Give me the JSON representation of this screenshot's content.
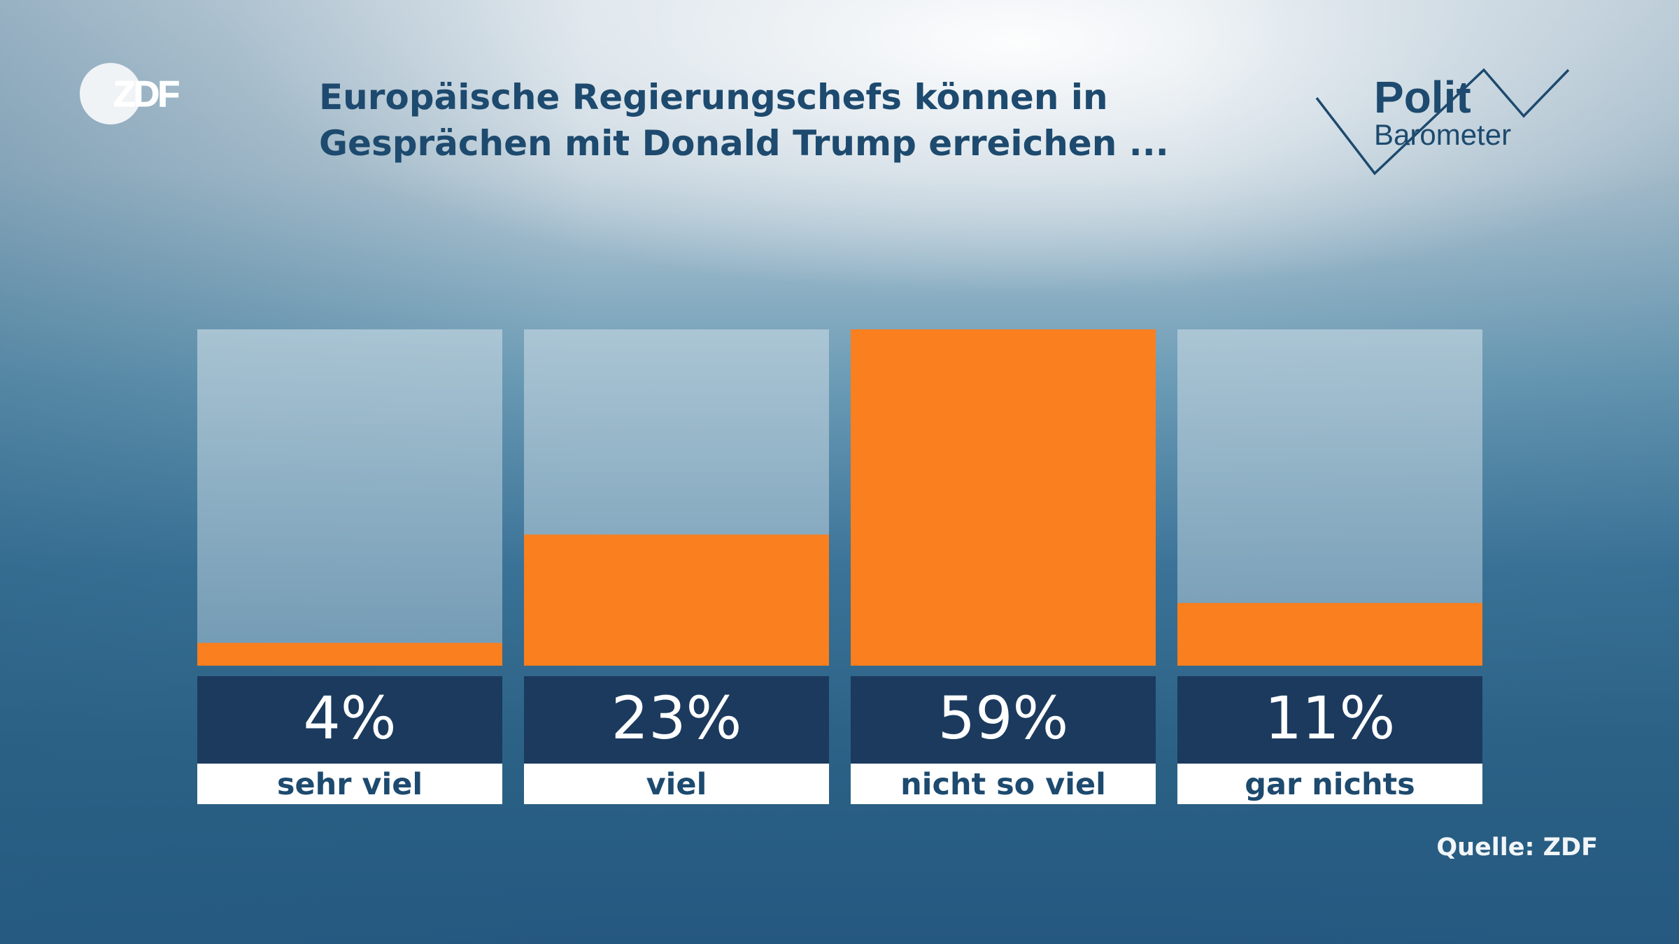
{
  "branding": {
    "broadcaster": "ZDF",
    "program_line1": "Polit",
    "program_line2": "Barometer"
  },
  "title_lines": [
    "Europäische Regierungschefs können in",
    "Gesprächen mit Donald Trump erreichen ..."
  ],
  "source": "Quelle: ZDF",
  "colors": {
    "bar_fill": "#fa7f1e",
    "bar_track": "#a9c4d3",
    "value_box": "#1b3a5e",
    "label_box": "#ffffff",
    "label_text": "#1d4a6e",
    "value_text": "#ffffff"
  },
  "chart_data": {
    "type": "bar",
    "title": "Europäische Regierungschefs können in Gesprächen mit Donald Trump erreichen ...",
    "categories": [
      "sehr viel",
      "viel",
      "nicht so viel",
      "gar nichts"
    ],
    "values": [
      4,
      23,
      59,
      11
    ],
    "value_labels": [
      "4%",
      "23%",
      "59%",
      "11%"
    ],
    "unit": "%",
    "ylim": [
      0,
      59
    ],
    "xlabel": "",
    "ylabel": "",
    "grid": false,
    "legend": "none"
  }
}
